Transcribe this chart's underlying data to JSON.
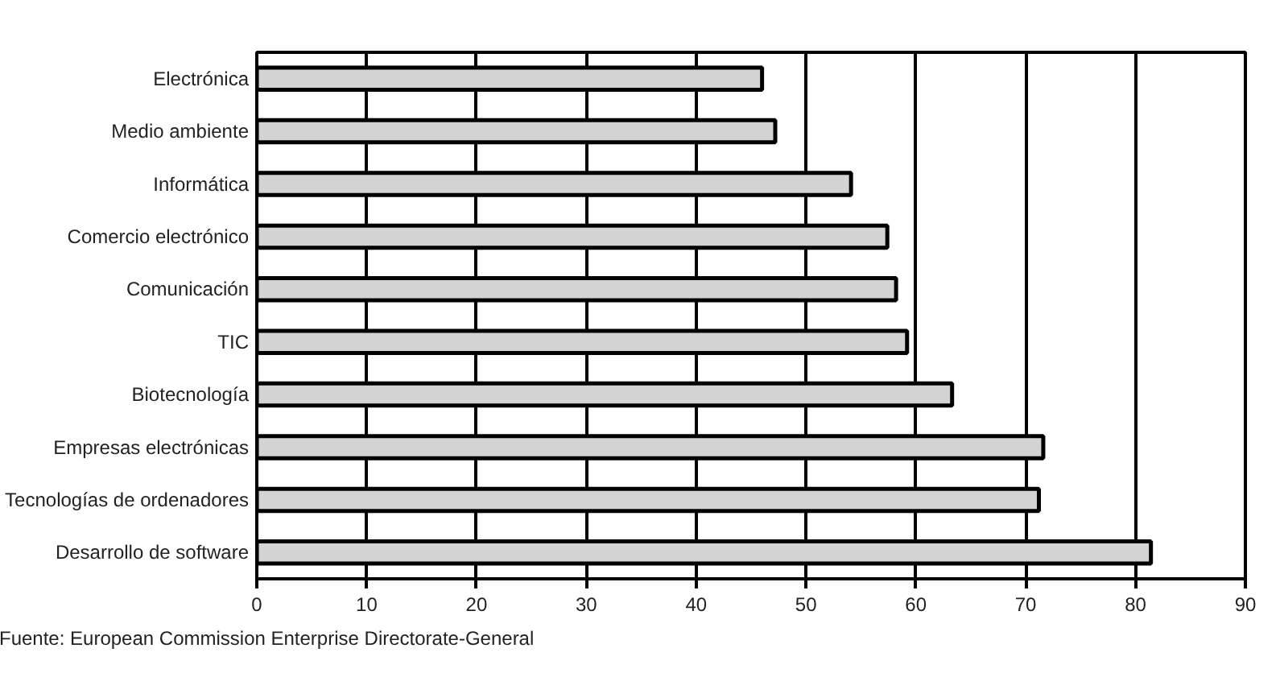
{
  "chart_data": {
    "type": "bar",
    "orientation": "horizontal",
    "categories": [
      "Electrónica",
      "Medio ambiente",
      "Informática",
      "Comercio electrónico",
      "Comunicación",
      "TIC",
      "Biotecnología",
      "Empresas electrónicas",
      "Tecnologías de ordenadores",
      "Desarrollo de software"
    ],
    "values": [
      46,
      47.2,
      54.1,
      57.4,
      58.2,
      59.2,
      63.3,
      71.6,
      71.2,
      81.4
    ],
    "color": "#d3d3d3",
    "xlim": [
      0,
      90
    ],
    "xticks": [
      0,
      10,
      20,
      30,
      40,
      50,
      60,
      70,
      80,
      90
    ],
    "grid": "x",
    "annotations": [
      "Fuente: European Commission Enterprise Directorate-General"
    ]
  }
}
